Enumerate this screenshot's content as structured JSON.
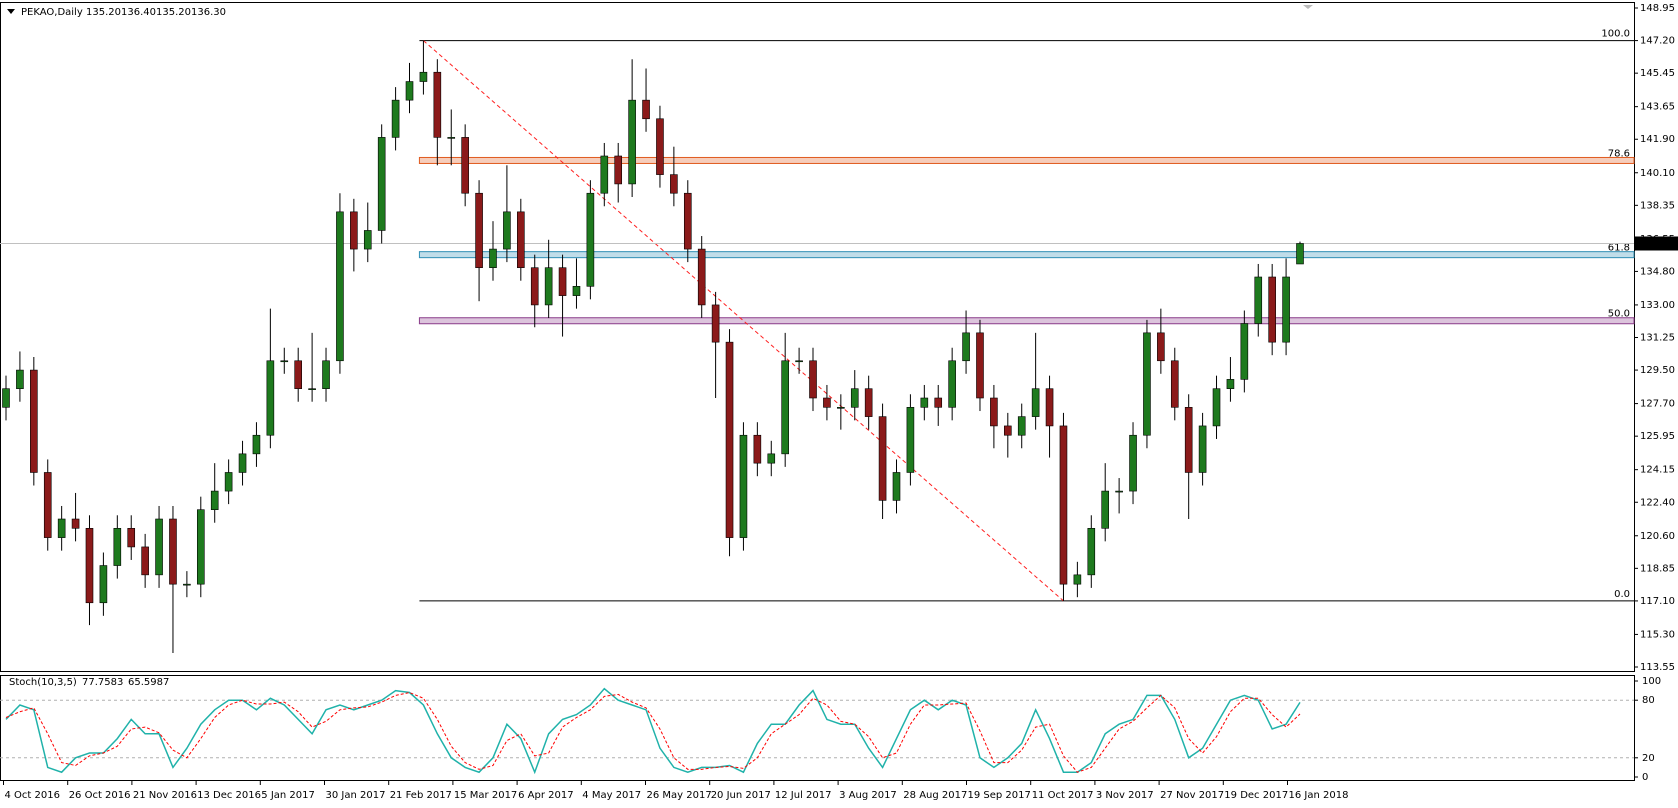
{
  "chart_data": [
    {
      "type": "candlestick",
      "title": "PEKAO,Daily",
      "header_values": [
        "135.20",
        "136.40",
        "135.20",
        "136.30"
      ],
      "open": [
        127.5,
        128.5,
        129.5,
        124,
        120.5,
        121.5,
        121,
        117,
        119,
        121,
        120,
        118.5,
        121.5,
        118,
        118,
        122,
        123,
        124,
        125,
        126,
        130,
        130,
        128.5,
        128.5,
        130,
        138,
        136,
        137,
        142,
        144,
        145,
        145.5,
        142,
        142,
        139,
        135,
        136,
        138,
        135,
        133,
        135,
        133.5,
        134,
        139,
        141,
        139.5,
        144,
        143,
        140,
        139,
        136,
        133,
        131,
        120.5,
        126,
        124.5,
        125,
        130,
        130,
        128,
        127.5,
        127.5,
        128.5,
        127,
        122.5,
        124,
        127.5,
        128,
        127.5,
        130,
        131.5,
        128,
        126.5,
        126,
        127,
        128.5,
        126.5,
        118,
        118.5,
        121,
        123,
        123,
        126,
        131.5,
        130,
        127.5,
        124,
        126.5,
        128.5,
        129,
        132,
        134.5,
        131,
        135.2
      ],
      "high": [
        129.2,
        130.5,
        130.2,
        124.7,
        122.2,
        122.9,
        121.7,
        119.7,
        121.7,
        121.7,
        120.7,
        122.2,
        122.2,
        118.7,
        122.7,
        124.5,
        124.7,
        125.7,
        126.7,
        132.8,
        130.7,
        130.7,
        131.5,
        130.7,
        139,
        138.7,
        138.5,
        142.7,
        144.7,
        146,
        147.2,
        146.2,
        143.5,
        142.7,
        139.7,
        137.5,
        140.5,
        138.7,
        135.7,
        136.5,
        135.7,
        135.5,
        139.7,
        141.7,
        141.7,
        146.2,
        145.7,
        143.7,
        141.5,
        139.7,
        136.7,
        133.7,
        131.7,
        126.7,
        126.7,
        125.7,
        131.5,
        130.7,
        130.7,
        128.7,
        128.2,
        129.5,
        129.2,
        127.7,
        124.7,
        128.2,
        128.7,
        128.7,
        130.7,
        132.7,
        132.2,
        128.7,
        127.2,
        127.7,
        131.5,
        129.2,
        127.2,
        119.2,
        121.7,
        124.5,
        123.7,
        126.7,
        132.2,
        132.8,
        130.7,
        128.2,
        127.2,
        129.2,
        130.2,
        132.7,
        135.2,
        135.2,
        135.5,
        136.4
      ],
      "low": [
        126.8,
        127.8,
        123.3,
        119.8,
        119.8,
        120.3,
        115.8,
        116.3,
        118.3,
        119.3,
        117.8,
        117.8,
        114.3,
        117.3,
        117.3,
        121.3,
        122.3,
        123.3,
        124.3,
        125.3,
        129.3,
        127.8,
        127.8,
        127.8,
        129.3,
        134.8,
        135.3,
        136.3,
        141.3,
        143.3,
        144.3,
        140.5,
        140.5,
        138.3,
        133.2,
        134.3,
        135.3,
        134.3,
        131.8,
        132.3,
        131.3,
        132.8,
        133.3,
        138.3,
        138.5,
        138.8,
        142.3,
        139.3,
        138.3,
        135.3,
        132.3,
        128,
        119.5,
        119.8,
        123.8,
        123.8,
        124.3,
        129.3,
        127.3,
        126.8,
        126.3,
        126.8,
        126.3,
        121.5,
        121.8,
        123.3,
        126.8,
        126.5,
        126.8,
        129.3,
        127.3,
        125.3,
        124.8,
        125.3,
        126.3,
        124.8,
        117.1,
        117.3,
        117.8,
        120.3,
        121.8,
        122.3,
        125.3,
        129.3,
        126.8,
        121.5,
        123.3,
        125.8,
        127.8,
        128.3,
        131.3,
        130.3,
        130.3,
        135.2
      ],
      "close": [
        128.5,
        129.5,
        124,
        120.5,
        121.5,
        121,
        117,
        119,
        121,
        120,
        118.5,
        121.5,
        118,
        118,
        122,
        123,
        124,
        125,
        126,
        130,
        130,
        128.5,
        128.5,
        130,
        138,
        136,
        137,
        142,
        144,
        145,
        145.5,
        142,
        142,
        139,
        135,
        136,
        138,
        135,
        133,
        135,
        133.5,
        134,
        139,
        141,
        139.5,
        144,
        143,
        140,
        139,
        136,
        133,
        131,
        120.5,
        126,
        124.5,
        125,
        130,
        130,
        128,
        127.5,
        127.5,
        128.5,
        127,
        122.5,
        124,
        127.5,
        128,
        127.5,
        130,
        131.5,
        128,
        126.5,
        126,
        127,
        128.5,
        126.5,
        118,
        118.5,
        121,
        123,
        123,
        126,
        131.5,
        130,
        127.5,
        124,
        126.5,
        128.5,
        129,
        132,
        134.5,
        131,
        134.5,
        136.3
      ],
      "up_color": "#1e7a1e",
      "down_color": "#8b1a1a",
      "ylim": [
        113.55,
        148.95
      ],
      "yticks": [
        148.95,
        {
          "value": 147.2,
          "label": "147.20"
        },
        145.45,
        143.65,
        {
          "value": 141.9,
          "label": "141.90"
        },
        {
          "value": 140.1,
          "label": "140.10"
        },
        138.35,
        136.55,
        {
          "value": 134.8,
          "label": "134.80"
        },
        {
          "value": 133,
          "label": "133.00"
        },
        131.25,
        {
          "value": 129.5,
          "label": "129.50"
        },
        {
          "value": 127.7,
          "label": "127.70"
        },
        125.95,
        124.15,
        {
          "value": 122.4,
          "label": "122.40"
        },
        {
          "value": 120.6,
          "label": "120.60"
        },
        118.85,
        {
          "value": 117.1,
          "label": "117.10"
        },
        {
          "value": 115.3,
          "label": "115.30"
        },
        113.55
      ],
      "fib_levels": [
        {
          "value": 100,
          "label": "100.0"
        },
        {
          "value": 78.6,
          "label": "78.6"
        },
        {
          "value": 61.8,
          "label": "61.8"
        },
        {
          "value": 50,
          "label": "50.0"
        },
        {
          "value": 0,
          "label": "0.0"
        }
      ],
      "fib_prices": [
        147.2,
        140.76,
        135.7,
        132.15,
        117.1
      ],
      "fib_colors": [
        "#000000",
        "#e05a1f",
        "#2f8fb5",
        "#8a3c8a",
        "#000000"
      ],
      "trend_color": "#ff2020",
      "x_labels": [
        "4 Oct 2016",
        "26 Oct 2016",
        "21 Nov 2016",
        "13 Dec 2016",
        "5 Jan 2017",
        "30 Jan 2017",
        "21 Feb 2017",
        "15 Mar 2017",
        "6 Apr 2017",
        "4 May 2017",
        "26 May 2017",
        "20 Jun 2017",
        "12 Jul 2017",
        "3 Aug 2017",
        "28 Aug 2017",
        "19 Sep 2017",
        "11 Oct 2017",
        "3 Nov 2017",
        "27 Nov 2017",
        "19 Dec 2017",
        "16 Jan 2018"
      ]
    },
    {
      "type": "line",
      "title": "Stoch(10,3,5)",
      "header_values": [
        "77.7583",
        "65.5987"
      ],
      "ylim": [
        0,
        100
      ],
      "yticks": [
        100,
        80,
        20,
        0
      ],
      "levels": [
        80,
        20
      ],
      "series": [
        {
          "color": "#20b2aa",
          "style": "solid",
          "values": [
            60,
            75,
            70,
            10,
            5,
            20,
            25,
            25,
            40,
            60,
            45,
            45,
            10,
            30,
            55,
            70,
            80,
            80,
            70,
            82,
            75,
            60,
            45,
            70,
            75,
            70,
            75,
            80,
            90,
            88,
            75,
            45,
            20,
            10,
            5,
            20,
            55,
            40,
            5,
            45,
            60,
            65,
            75,
            92,
            80,
            75,
            70,
            30,
            10,
            5,
            10,
            10,
            12,
            5,
            35,
            55,
            55,
            75,
            90,
            60,
            55,
            55,
            30,
            10,
            40,
            70,
            80,
            70,
            80,
            75,
            20,
            10,
            20,
            35,
            70,
            40,
            5,
            5,
            15,
            45,
            55,
            60,
            85,
            85,
            60,
            20,
            30,
            55,
            80,
            85,
            80,
            50,
            55,
            77.76
          ]
        },
        {
          "color": "#ff0000",
          "style": "dashed",
          "values": [
            62,
            68,
            72,
            45,
            15,
            12,
            22,
            25,
            32,
            50,
            52,
            46,
            28,
            20,
            40,
            62,
            75,
            80,
            76,
            76,
            78,
            68,
            52,
            58,
            70,
            72,
            73,
            78,
            85,
            88,
            82,
            60,
            32,
            15,
            8,
            12,
            38,
            45,
            22,
            25,
            52,
            62,
            70,
            84,
            86,
            78,
            72,
            50,
            20,
            8,
            8,
            10,
            11,
            9,
            20,
            45,
            55,
            65,
            82,
            75,
            58,
            55,
            42,
            20,
            25,
            55,
            75,
            75,
            76,
            77,
            48,
            15,
            15,
            28,
            52,
            55,
            22,
            5,
            10,
            30,
            50,
            58,
            72,
            85,
            72,
            40,
            25,
            42,
            68,
            82,
            82,
            65,
            52,
            65.6
          ]
        }
      ]
    }
  ]
}
